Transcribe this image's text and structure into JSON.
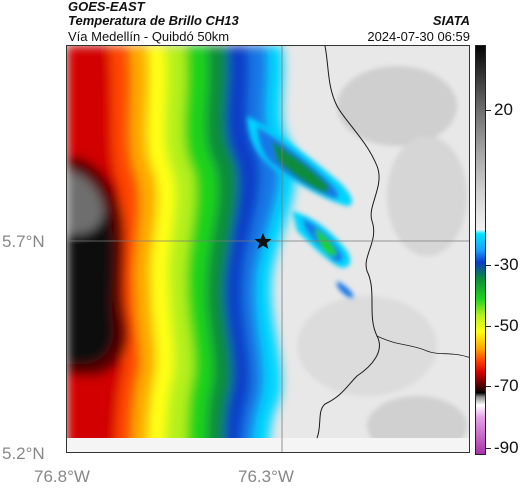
{
  "header": {
    "agency": "GOES-EAST",
    "product": "Temperatura de Brillo CH13",
    "organization": "SIATA",
    "location": "Vía Medellín - Quibdó 50km",
    "datetime": "2024-07-30 06:59"
  },
  "map": {
    "lat_labels": [
      "5.7°N",
      "5.2°N"
    ],
    "lon_labels": [
      "76.8°W",
      "76.3°W"
    ],
    "marker": "star-marker"
  },
  "colorbar": {
    "tick_labels": [
      "20",
      "-30",
      "-50",
      "-70",
      "-90"
    ],
    "colors": [
      "#000000",
      "#ffffff",
      "#00e5ff",
      "#0a3cc8",
      "#1fd21f",
      "#ffff14",
      "#ff4600",
      "#d20000",
      "#aa32aa"
    ]
  }
}
